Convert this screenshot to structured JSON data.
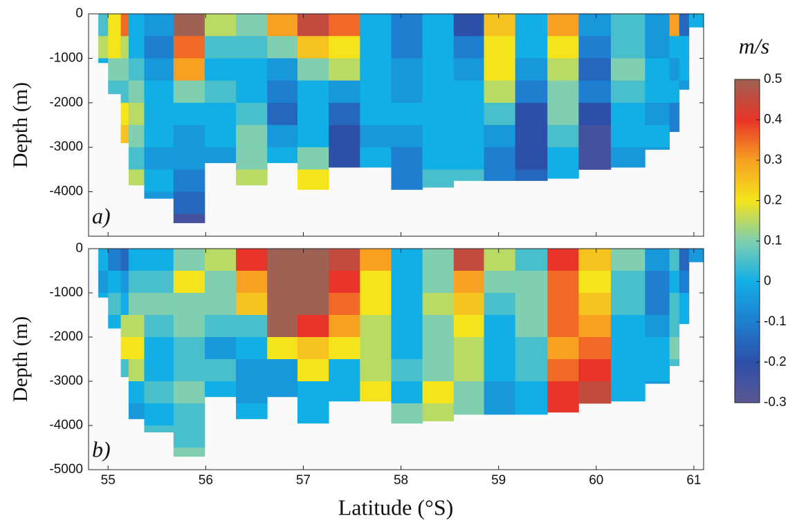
{
  "chart_data": [
    {
      "type": "heatmap",
      "panel_label": "a)",
      "ylabel": "Depth (m)",
      "x_edges": [
        54.9,
        55.0,
        55.13,
        55.21,
        55.37,
        55.67,
        55.99,
        56.31,
        56.63,
        56.94,
        57.26,
        57.58,
        57.9,
        58.22,
        58.54,
        58.85,
        59.17,
        59.5,
        59.82,
        60.15,
        60.5,
        60.75,
        60.85,
        60.95,
        61.1
      ],
      "depth_bins": [
        0,
        -500,
        -1000,
        -1500,
        -2000,
        -2500,
        -3000,
        -3500,
        -4000,
        -4500,
        -5000
      ],
      "bottoms": [
        -1100,
        -1800,
        -2900,
        -3850,
        -4150,
        -4700,
        -3350,
        -3850,
        -3350,
        -3950,
        -3450,
        -3450,
        -3950,
        -3900,
        -3750,
        -3750,
        -3750,
        -3700,
        -3500,
        -3450,
        -3050,
        -2650,
        -1700,
        -300
      ],
      "values": [
        [
          0.05,
          0.15,
          0.0
        ],
        [
          0.2,
          0.2,
          0.1,
          0.05
        ],
        [
          0.35,
          0.15,
          0.1,
          0.05,
          0.2,
          0.25
        ],
        [
          0.0,
          0.0,
          0.05,
          0.1,
          0.15,
          0.1,
          0.05,
          0.15
        ],
        [
          -0.05,
          -0.1,
          -0.05,
          0.0,
          0.0,
          0.0,
          -0.05,
          0.0,
          -0.05
        ],
        [
          0.5,
          0.35,
          0.3,
          0.1,
          0.0,
          -0.05,
          -0.05,
          -0.1,
          -0.15,
          -0.25
        ],
        [
          0.15,
          0.05,
          0.0,
          0.05,
          0.0,
          0.0,
          -0.05
        ],
        [
          0.1,
          0.05,
          0.0,
          0.0,
          0.05,
          0.1,
          0.1,
          0.15
        ],
        [
          0.3,
          0.1,
          -0.05,
          -0.1,
          -0.15,
          -0.05,
          0.0
        ],
        [
          0.45,
          0.25,
          0.1,
          0.0,
          0.0,
          0.0,
          0.1,
          0.2
        ],
        [
          0.35,
          0.2,
          0.15,
          -0.05,
          -0.15,
          -0.2,
          -0.2
        ],
        [
          0.0,
          0.0,
          0.0,
          0.0,
          0.0,
          -0.05,
          0.0
        ],
        [
          -0.1,
          -0.1,
          -0.05,
          -0.05,
          0.0,
          -0.05,
          -0.1,
          -0.1
        ],
        [
          0.0,
          0.0,
          0.0,
          0.0,
          0.0,
          0.0,
          0.0,
          0.05
        ],
        [
          -0.2,
          -0.1,
          -0.05,
          0.0,
          0.0,
          0.0,
          0.0,
          0.05
        ],
        [
          0.25,
          0.2,
          0.2,
          0.15,
          0.05,
          -0.05,
          -0.1,
          -0.1
        ],
        [
          0.0,
          0.0,
          -0.05,
          -0.1,
          -0.2,
          -0.2,
          -0.2,
          -0.15
        ],
        [
          0.3,
          0.2,
          0.15,
          0.1,
          0.1,
          0.05,
          0.0,
          0.0
        ],
        [
          -0.05,
          -0.1,
          -0.15,
          -0.1,
          -0.2,
          -0.25,
          -0.25
        ],
        [
          0.05,
          0.05,
          0.1,
          0.05,
          0.0,
          0.0,
          -0.05
        ],
        [
          -0.05,
          -0.05,
          0.0,
          0.0,
          -0.05,
          0.0,
          -0.05
        ],
        [
          0.3,
          0.0,
          -0.05,
          0.0,
          -0.1,
          -0.1
        ],
        [
          -0.15,
          0.0,
          0.0,
          -0.05
        ],
        [
          0.0
        ]
      ],
      "xlim": [
        54.8,
        61.1
      ],
      "ylim": [
        -5000,
        0
      ],
      "yticks": [
        -4000,
        -3000,
        -2000,
        -1000,
        0
      ]
    },
    {
      "type": "heatmap",
      "panel_label": "b)",
      "ylabel": "Depth (m)",
      "xlabel": "Latitude (°S)",
      "x_edges": [
        54.9,
        55.0,
        55.13,
        55.21,
        55.37,
        55.67,
        55.99,
        56.31,
        56.63,
        56.94,
        57.26,
        57.58,
        57.9,
        58.22,
        58.54,
        58.85,
        59.17,
        59.5,
        59.82,
        60.15,
        60.5,
        60.75,
        60.85,
        60.95,
        61.1
      ],
      "depth_bins": [
        0,
        -500,
        -1000,
        -1500,
        -2000,
        -2500,
        -3000,
        -3500,
        -4000,
        -4500,
        -5000
      ],
      "bottoms": [
        -1100,
        -1800,
        -2900,
        -3850,
        -4150,
        -4700,
        -3350,
        -3850,
        -3350,
        -3950,
        -3450,
        -3450,
        -3950,
        -3900,
        -3750,
        -3750,
        -3750,
        -3700,
        -3500,
        -3450,
        -3050,
        -2650,
        -1700,
        -300
      ],
      "values": [
        [
          0.0,
          -0.05,
          0.0
        ],
        [
          -0.1,
          0.0,
          0.05,
          0.0
        ],
        [
          -0.15,
          -0.05,
          0.0,
          0.15,
          0.2,
          0.05
        ],
        [
          0.0,
          0.05,
          0.1,
          0.15,
          0.2,
          0.15,
          0.0,
          -0.05
        ],
        [
          0.0,
          0.05,
          0.1,
          0.05,
          0.0,
          0.0,
          0.05,
          0.0,
          0.05
        ],
        [
          0.1,
          0.2,
          0.1,
          0.1,
          0.05,
          0.05,
          0.1,
          0.05,
          0.05,
          0.1
        ],
        [
          0.15,
          0.1,
          0.1,
          0.05,
          -0.05,
          0.05,
          0.0
        ],
        [
          0.4,
          0.3,
          0.25,
          0.05,
          0.0,
          -0.05,
          -0.05,
          0.0
        ],
        [
          0.5,
          0.5,
          0.5,
          0.5,
          0.2,
          -0.05,
          -0.05
        ],
        [
          0.5,
          0.5,
          0.5,
          0.4,
          0.25,
          0.2,
          0.0,
          0.0
        ],
        [
          0.45,
          0.4,
          0.35,
          0.3,
          0.2,
          0.0,
          0.0
        ],
        [
          0.3,
          0.2,
          0.2,
          0.15,
          0.15,
          0.15,
          0.2
        ],
        [
          0.0,
          0.0,
          0.0,
          0.0,
          0.0,
          0.05,
          0.0,
          0.1
        ],
        [
          0.1,
          0.1,
          0.15,
          0.1,
          0.1,
          0.1,
          0.2,
          0.15
        ],
        [
          0.45,
          0.3,
          0.25,
          0.2,
          0.15,
          0.15,
          0.1,
          0.1
        ],
        [
          0.15,
          0.1,
          0.05,
          0.0,
          0.0,
          0.0,
          -0.05,
          -0.05
        ],
        [
          0.05,
          0.1,
          0.1,
          0.1,
          0.05,
          0.05,
          0.0,
          0.0
        ],
        [
          0.4,
          0.35,
          0.35,
          0.35,
          0.3,
          0.35,
          0.4,
          0.4
        ],
        [
          0.25,
          0.2,
          0.25,
          0.3,
          0.35,
          0.4,
          0.45
        ],
        [
          0.1,
          0.05,
          0.05,
          0.0,
          0.0,
          0.0,
          0.0
        ],
        [
          -0.05,
          -0.1,
          -0.1,
          -0.05,
          0.0,
          0.0,
          -0.05
        ],
        [
          0.05,
          0.0,
          0.05,
          0.05,
          0.1,
          0.05
        ],
        [
          -0.15,
          -0.1,
          0.0,
          0.0
        ],
        [
          -0.05
        ]
      ],
      "xlim": [
        54.8,
        61.1
      ],
      "ylim": [
        -5000,
        0
      ],
      "yticks": [
        -5000,
        -4000,
        -3000,
        -2000,
        -1000,
        0
      ],
      "xticks": [
        55,
        56,
        57,
        58,
        59,
        60,
        61
      ]
    }
  ],
  "colorbar": {
    "title": "m/s",
    "lim": [
      -0.3,
      0.5
    ],
    "ticks": [
      -0.3,
      -0.2,
      -0.1,
      0,
      0.1,
      0.2,
      0.3,
      0.4,
      0.5
    ],
    "colors": [
      "#5b5593",
      "#2c4fa8",
      "#1e7fd0",
      "#12aee6",
      "#7fcfb0",
      "#f4e41c",
      "#f7a022",
      "#e83428",
      "#9e6153"
    ]
  }
}
